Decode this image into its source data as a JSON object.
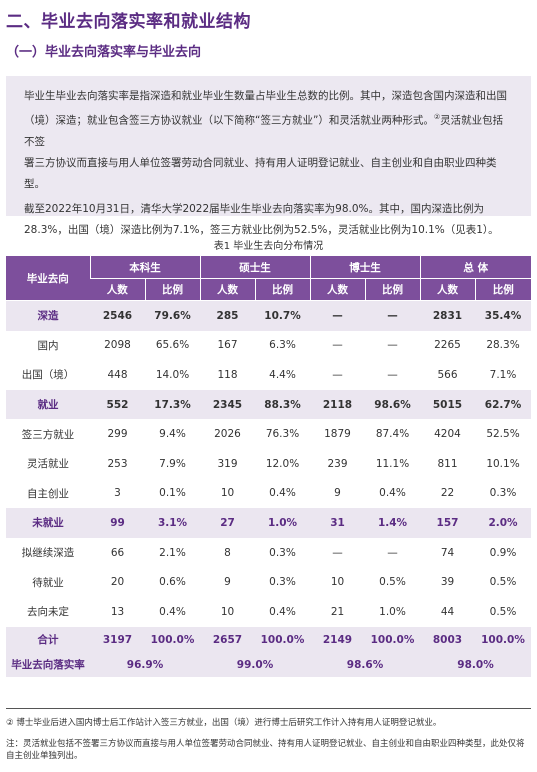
{
  "section_title": "二、毕业去向落实率和就业结构",
  "subsection_title": "（一）毕业去向落实率与毕业去向",
  "intro": {
    "para1_line1": "毕业生毕业去向落实率是指深造和就业毕业生数量占毕业生总数的比例。其中，深造包含国内深造和出国",
    "para1_line2": "（境）深造；就业包含签三方协议就业（以下简称“签三方就业”）和灵活就业两种形式。",
    "para1_sup": "②",
    "para1_line2b": "灵活就业包括不签",
    "para1_line3": "署三方协议而直接与用人单位签署劳动合同就业、持有用人证明登记就业、自主创业和自由职业四种类型。",
    "para2_line1": "截至2022年10月31日，清华大学2022届毕业生毕业去向落实率为98.0%。其中，国内深造比例为",
    "para2_line2": "28.3%，出国（境）深造比例为7.1%，签三方就业比例为52.5%，灵活就业比例为10.1%（见表1）。"
  },
  "table": {
    "caption": "表1  毕业生去向分布情况",
    "head_col0": "毕业去向",
    "groups": [
      "本科生",
      "硕士生",
      "博士生",
      "总  体"
    ],
    "sub": [
      "人数",
      "比例"
    ],
    "rows": [
      {
        "label": "深造",
        "cells": [
          "2546",
          "79.6%",
          "285",
          "10.7%",
          "—",
          "—",
          "2831",
          "35.4%"
        ]
      },
      {
        "label": "国内",
        "cells": [
          "2098",
          "65.6%",
          "167",
          "6.3%",
          "—",
          "—",
          "2265",
          "28.3%"
        ]
      },
      {
        "label": "出国（境）",
        "cells": [
          "448",
          "14.0%",
          "118",
          "4.4%",
          "—",
          "—",
          "566",
          "7.1%"
        ]
      },
      {
        "label": "就业",
        "cells": [
          "552",
          "17.3%",
          "2345",
          "88.3%",
          "2118",
          "98.6%",
          "5015",
          "62.7%"
        ]
      },
      {
        "label": "签三方就业",
        "cells": [
          "299",
          "9.4%",
          "2026",
          "76.3%",
          "1879",
          "87.4%",
          "4204",
          "52.5%"
        ]
      },
      {
        "label": "灵活就业",
        "cells": [
          "253",
          "7.9%",
          "319",
          "12.0%",
          "239",
          "11.1%",
          "811",
          "10.1%"
        ]
      },
      {
        "label": "自主创业",
        "cells": [
          "3",
          "0.1%",
          "10",
          "0.4%",
          "9",
          "0.4%",
          "22",
          "0.3%"
        ]
      },
      {
        "label": "未就业",
        "cells": [
          "99",
          "3.1%",
          "27",
          "1.0%",
          "31",
          "1.4%",
          "157",
          "2.0%"
        ]
      },
      {
        "label": "拟继续深造",
        "cells": [
          "66",
          "2.1%",
          "8",
          "0.3%",
          "—",
          "—",
          "74",
          "0.9%"
        ]
      },
      {
        "label": "待就业",
        "cells": [
          "20",
          "0.6%",
          "9",
          "0.3%",
          "10",
          "0.5%",
          "39",
          "0.5%"
        ]
      },
      {
        "label": "去向未定",
        "cells": [
          "13",
          "0.4%",
          "10",
          "0.4%",
          "21",
          "1.0%",
          "44",
          "0.5%"
        ]
      }
    ],
    "total": {
      "label": "合计",
      "cells": [
        "3197",
        "100.0%",
        "2657",
        "100.0%",
        "2149",
        "100.0%",
        "8003",
        "100.0%"
      ]
    },
    "rate": {
      "label": "毕业去向落实率",
      "cells": [
        "96.9%",
        "99.0%",
        "98.6%",
        "98.0%"
      ]
    }
  },
  "footnotes": {
    "note1": "②  博士毕业后进入国内博士后工作站计入签三方就业，出国（境）进行博士后研究工作计入持有用人证明登记就业。",
    "note2": "注：灵活就业包括不签署三方协议而直接与用人单位签署劳动合同就业、持有用人证明登记就业、自主创业和自由职业四种类型，此处仅将自主创业单独列出。"
  },
  "colors": {
    "accent": "#5b2c83",
    "header_bg": "#7d4f9c",
    "highlight_bg": "#ebe6f0",
    "intro_bg": "#ece8f1"
  }
}
